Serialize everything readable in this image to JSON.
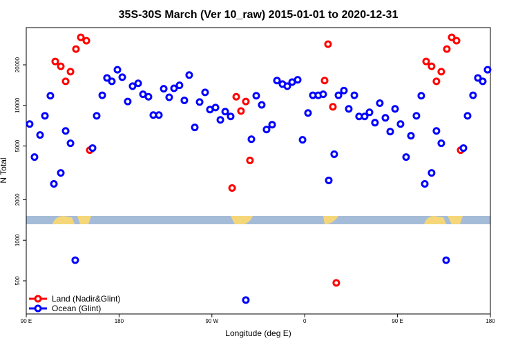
{
  "chart_data": {
    "type": "scatter",
    "title": "35S-30S March (Ver 10_raw)   2015-01-01 to 2020-12-31",
    "xlabel": "Longitude (deg E)",
    "ylabel": "N Total",
    "xlim": [
      90,
      540
    ],
    "xticks": [
      {
        "value": 90,
        "label": "90 E"
      },
      180,
      {
        "value": 270,
        "label": "90 W"
      },
      {
        "value": 360,
        "label": "0"
      },
      {
        "value": 450,
        "label": "90 E"
      },
      {
        "value": 540,
        "label": "180"
      }
    ],
    "ylim": [
      284,
      37800
    ],
    "yscale": "log",
    "yticks": [
      500,
      1000,
      2000,
      5000,
      10000,
      20000
    ],
    "legend": "lower left",
    "series": [
      {
        "name": "Land (Nadir&Glint)",
        "color": "#ff0000",
        "x": [
          118.1,
          123.5,
          128.2,
          132.9,
          138.2,
          142.9,
          148.3,
          151.6,
          289.6,
          293.6,
          298.2,
          302.9,
          306.9,
          379.3,
          382.6,
          387.3,
          390.6,
          477.7,
          483.0,
          487.7,
          492.4,
          497.8,
          502.5,
          507.2,
          511.2
        ],
        "values": [
          21200,
          19500,
          15100,
          17800,
          26200,
          32000,
          30200,
          4660,
          2440,
          11600,
          9100,
          10700,
          3910,
          15300,
          28500,
          9770,
          483,
          21200,
          19500,
          15100,
          17800,
          26200,
          32000,
          30200,
          4660
        ]
      },
      {
        "name": "Ocean (Glint)",
        "color": "#0000ff",
        "x": [
          93.3,
          98.0,
          103.4,
          108.1,
          113.4,
          116.8,
          123.5,
          128.2,
          132.9,
          137.5,
          154.3,
          158.3,
          163.7,
          168.3,
          173.0,
          178.4,
          183.1,
          188.4,
          193.1,
          198.5,
          203.2,
          208.5,
          213.2,
          218.6,
          223.3,
          228.6,
          233.3,
          238.6,
          243.3,
          248.0,
          253.4,
          258.1,
          263.4,
          268.1,
          273.5,
          278.2,
          282.9,
          288.2,
          302.9,
          308.3,
          313.0,
          318.3,
          323.0,
          328.4,
          333.1,
          338.4,
          343.1,
          347.8,
          353.2,
          357.9,
          363.2,
          367.9,
          373.2,
          377.9,
          383.3,
          388.6,
          392.7,
          398.0,
          402.7,
          408.1,
          412.7,
          418.1,
          422.8,
          428.1,
          432.8,
          438.2,
          442.9,
          447.6,
          452.9,
          458.3,
          463.0,
          468.3,
          473.0,
          476.4,
          483.0,
          487.7,
          492.4,
          497.1,
          513.9,
          517.9,
          523.2,
          527.9,
          532.6,
          537.3
        ],
        "values": [
          7280,
          4140,
          6040,
          8380,
          11800,
          2620,
          3160,
          6470,
          5240,
          711,
          4830,
          8380,
          11900,
          16000,
          15100,
          18400,
          16200,
          10700,
          13900,
          14600,
          12100,
          11600,
          8490,
          8490,
          13300,
          11500,
          13400,
          14100,
          10900,
          16800,
          6870,
          10600,
          12500,
          9320,
          9650,
          7820,
          9000,
          8290,
          360,
          5620,
          11800,
          10100,
          6630,
          7200,
          15300,
          14400,
          13900,
          14900,
          15500,
          5560,
          8790,
          11900,
          11900,
          12100,
          2780,
          4350,
          11900,
          12900,
          9430,
          11900,
          8290,
          8290,
          8890,
          7450,
          10400,
          8090,
          6400,
          9430,
          7280,
          4140,
          5960,
          8380,
          11800,
          2620,
          3160,
          6470,
          5240,
          711,
          4830,
          8380,
          11900,
          16000,
          15100,
          18400
        ]
      }
    ]
  }
}
